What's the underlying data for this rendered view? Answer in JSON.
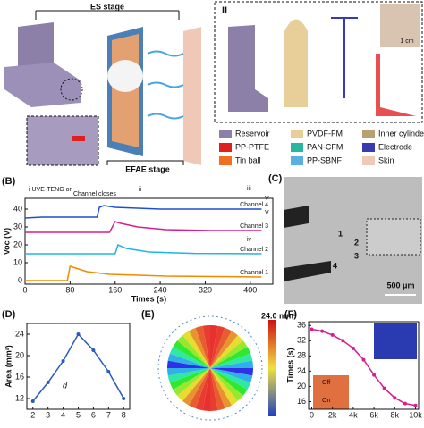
{
  "figure": {
    "top": {
      "es_stage": "ES stage",
      "efae_stage": "EFAE stage",
      "panel_ii": "II",
      "scale": "1 cm"
    },
    "legend": [
      "Reservoir",
      "PVDF-FM",
      "Inner cylinder",
      "PP-PTFE",
      "PAN-CFM",
      "Electrode",
      "Tin ball",
      "PP-SBNF",
      "Skin"
    ],
    "panel_b": {
      "label": "(B)",
      "notes": [
        "i UVE-TENG on",
        "Channel closes",
        "ii",
        "iii",
        "iv",
        "V",
        "V"
      ]
    },
    "panel_c": {
      "label": "(C)",
      "markers": [
        "1",
        "2",
        "3",
        "4"
      ],
      "scale": "500 μm"
    },
    "panel_d": {
      "label": "(D)",
      "note": "d"
    },
    "panel_e": {
      "label": "(E)",
      "colorbar": "24.0 mm²"
    },
    "panel_f": {
      "label": "(F)",
      "off": "Off",
      "on": "On"
    }
  },
  "chart_data": [
    {
      "type": "line",
      "xlabel": "Times (s)",
      "ylabel": "Voc (V)",
      "xlim": [
        0,
        440
      ],
      "ylim": [
        -2,
        46
      ],
      "xticks": [
        0,
        80,
        160,
        240,
        320,
        400
      ],
      "yticks": [
        0,
        10,
        20,
        30,
        40
      ],
      "series": [
        {
          "name": "Channel 4",
          "color": "#1f4fd1",
          "x": [
            0,
            30,
            128,
            132,
            140,
            160,
            200,
            240,
            330,
            420
          ],
          "values": [
            35,
            35.5,
            35.5,
            41,
            42,
            41,
            40.5,
            40,
            40,
            40
          ]
        },
        {
          "name": "Channel 3",
          "color": "#d61e8c",
          "x": [
            0,
            150,
            160,
            170,
            200,
            250,
            330,
            420
          ],
          "values": [
            27,
            27,
            33,
            32,
            30,
            28.5,
            28,
            28
          ]
        },
        {
          "name": "Channel 2",
          "color": "#1fb5e0",
          "x": [
            0,
            160,
            165,
            180,
            220,
            300,
            420
          ],
          "values": [
            15,
            15,
            20,
            18,
            16,
            15.2,
            15
          ]
        },
        {
          "name": "Channel 1",
          "color": "#f08a00",
          "x": [
            0,
            75,
            80,
            90,
            110,
            150,
            250,
            420
          ],
          "values": [
            0,
            0,
            8,
            7,
            5,
            3.5,
            2.5,
            2
          ]
        }
      ]
    },
    {
      "type": "line",
      "ylabel": "Area (mm²)",
      "xlim": [
        1.6,
        8.4
      ],
      "ylim": [
        10,
        26
      ],
      "xticks": [
        2,
        3,
        4,
        5,
        6,
        7,
        8
      ],
      "yticks": [
        12,
        16,
        20,
        24
      ],
      "series": [
        {
          "color": "#2a5bb8",
          "x": [
            2,
            3,
            4,
            5,
            6,
            7,
            8
          ],
          "values": [
            11.5,
            15,
            19,
            24,
            21,
            17,
            12
          ]
        }
      ]
    },
    {
      "type": "line",
      "ylabel": "Times (s)",
      "xlim": [
        -300,
        10300
      ],
      "ylim": [
        14,
        37
      ],
      "xticks": [
        0,
        {
          "value": 2000,
          "label": "2k"
        },
        {
          "value": 4000,
          "label": "4k"
        },
        {
          "value": 6000,
          "label": "6k"
        },
        {
          "value": 8000,
          "label": "8k"
        },
        {
          "value": 10000,
          "label": "10k"
        }
      ],
      "yticks": [
        16,
        20,
        24,
        28,
        32,
        36
      ],
      "series": [
        {
          "color": "#d61e8c",
          "x": [
            0,
            1000,
            2000,
            3000,
            4000,
            5000,
            6000,
            7000,
            8000,
            9000,
            10000
          ],
          "values": [
            35,
            34.5,
            33.5,
            32,
            30,
            27,
            23,
            19.5,
            17,
            15.5,
            15
          ]
        }
      ]
    }
  ]
}
